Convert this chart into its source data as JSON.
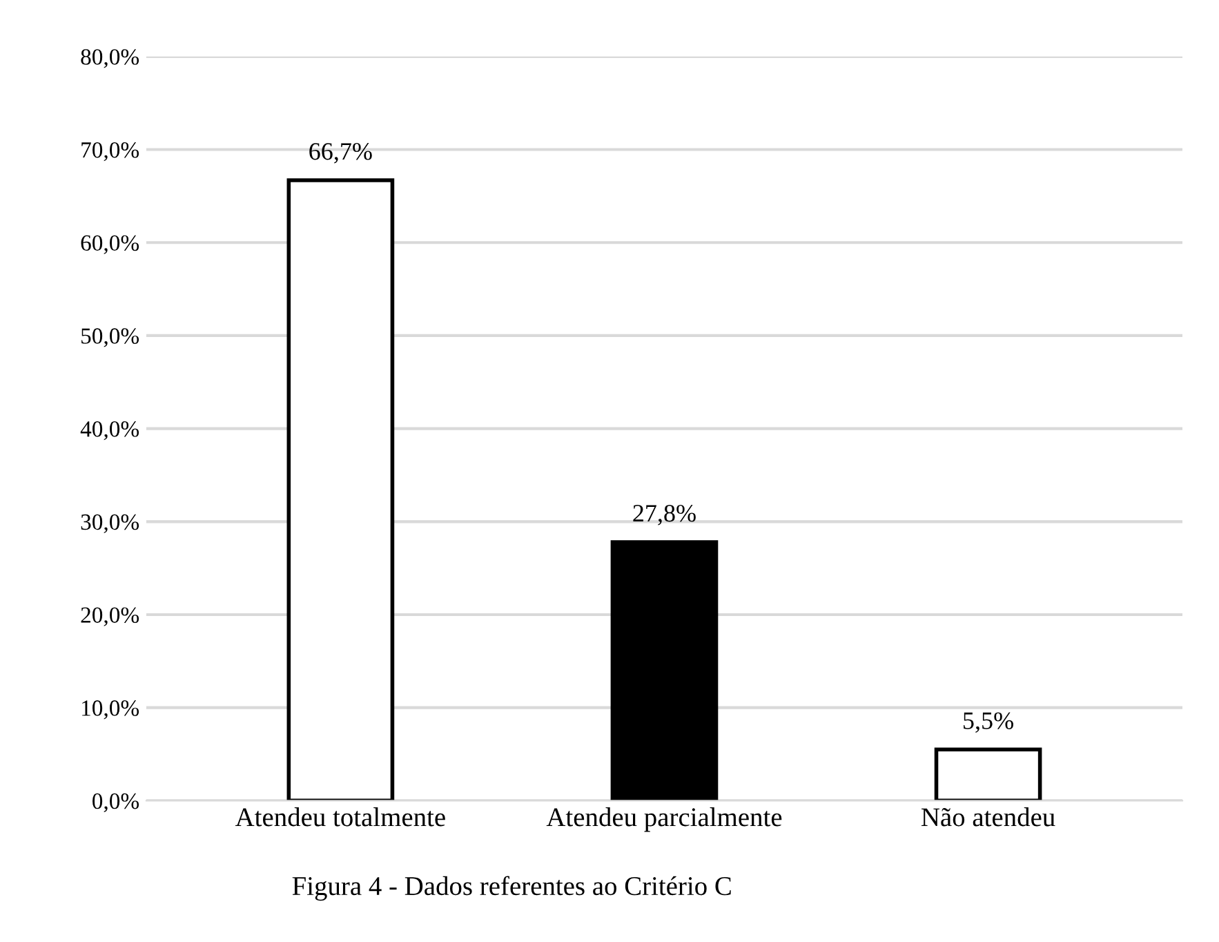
{
  "chart_data": {
    "type": "bar",
    "categories": [
      "Atendeu totalmente",
      "Atendeu parcialmente",
      "Não atendeu"
    ],
    "values": [
      66.7,
      27.8,
      5.5
    ],
    "colors": [
      "#ffffff",
      "#000000",
      "#ffffff"
    ],
    "value_labels": [
      "66,7%",
      "27,8%",
      "5,5%"
    ],
    "ylim": [
      0,
      80
    ],
    "yticks": [
      {
        "value": 0,
        "label": "0,0%"
      },
      {
        "value": 10,
        "label": "10,0%"
      },
      {
        "value": 20,
        "label": "20,0%"
      },
      {
        "value": 30,
        "label": "30,0%"
      },
      {
        "value": 40,
        "label": "40,0%"
      },
      {
        "value": 50,
        "label": "50,0%"
      },
      {
        "value": 60,
        "label": "60,0%"
      },
      {
        "value": 70,
        "label": "70,0%"
      },
      {
        "value": 80,
        "label": "80,0%"
      }
    ],
    "grid": "y",
    "legend": false,
    "annotations": [
      "Figura 4 - Dados referentes ao Critério C"
    ]
  }
}
